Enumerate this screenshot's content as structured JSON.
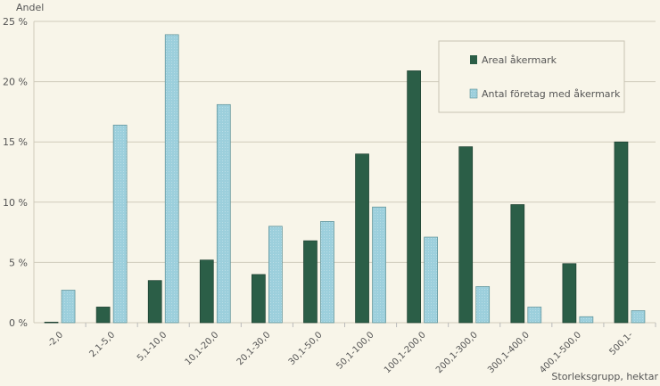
{
  "chart_data": {
    "type": "bar",
    "ylabel": "Andel",
    "xlabel": "Storleksgrupp, hektar",
    "ylim": [
      0,
      25
    ],
    "yticks": [
      "0 %",
      "5 %",
      "10 %",
      "15 %",
      "20 %",
      "25 %"
    ],
    "ytick_values": [
      0,
      5,
      10,
      15,
      20,
      25
    ],
    "grid": true,
    "legend_position": "top-right",
    "categories": [
      "-2,0",
      "2,1-5,0",
      "5,1-10,0",
      "10,1-20,0",
      "20,1-30,0",
      "30,1-50,0",
      "50,1-100,0",
      "100,1-200,0",
      "200,1-300,0",
      "300,1-400,0",
      "400,1-500,0",
      "500,1-"
    ],
    "series": [
      {
        "name": "Areal åkermark",
        "color": "#2b5e47",
        "values": [
          0.05,
          1.3,
          3.5,
          5.2,
          4.0,
          6.8,
          14.0,
          20.9,
          14.6,
          9.8,
          4.9,
          15.0
        ]
      },
      {
        "name": "Antal företag med åkermark",
        "color": "#9ccfdc",
        "values": [
          2.7,
          16.4,
          23.9,
          18.1,
          8.0,
          8.4,
          9.6,
          7.1,
          3.0,
          1.3,
          0.5,
          1.0
        ]
      }
    ]
  }
}
